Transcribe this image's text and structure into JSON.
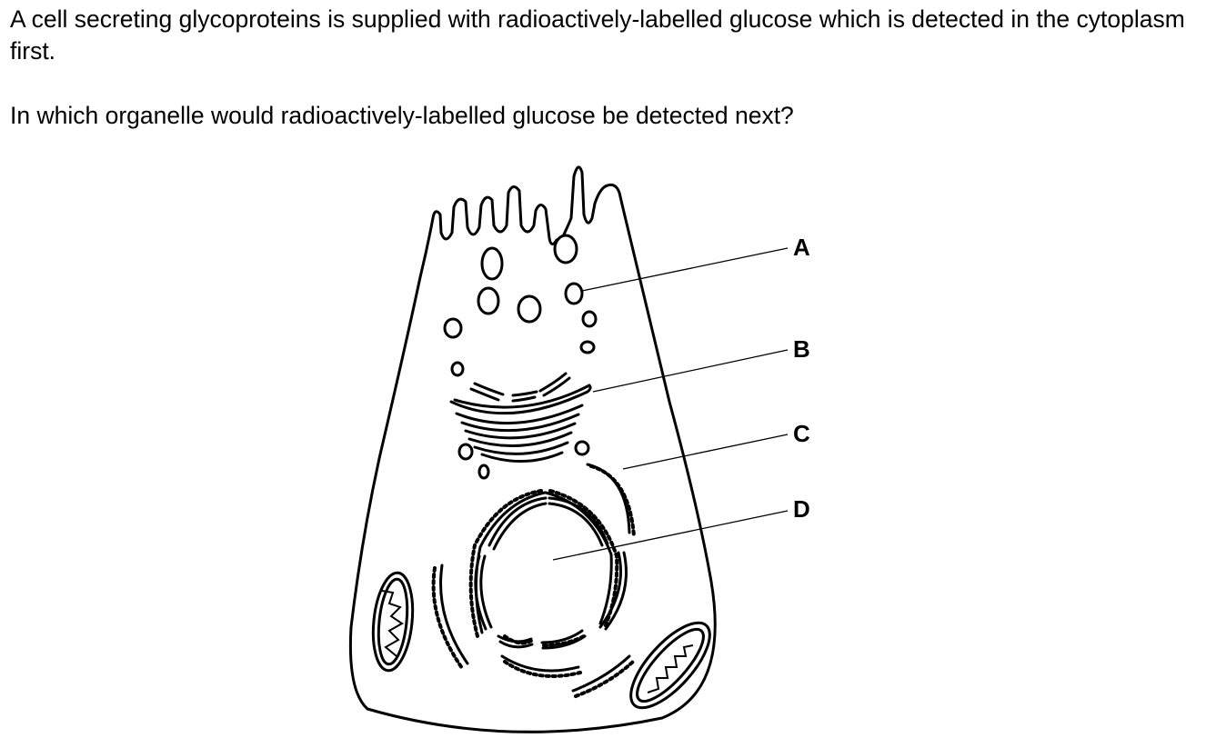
{
  "question": {
    "stem": "A cell secreting glycoproteins is supplied with radioactively-labelled glucose which is detected in the cytoplasm first.",
    "prompt": "In which organelle would radioactively-labelled glucose be detected next?"
  },
  "diagram": {
    "labels": [
      {
        "id": "a",
        "text": "A"
      },
      {
        "id": "b",
        "text": "B"
      },
      {
        "id": "c",
        "text": "C"
      },
      {
        "id": "d",
        "text": "D"
      }
    ]
  }
}
